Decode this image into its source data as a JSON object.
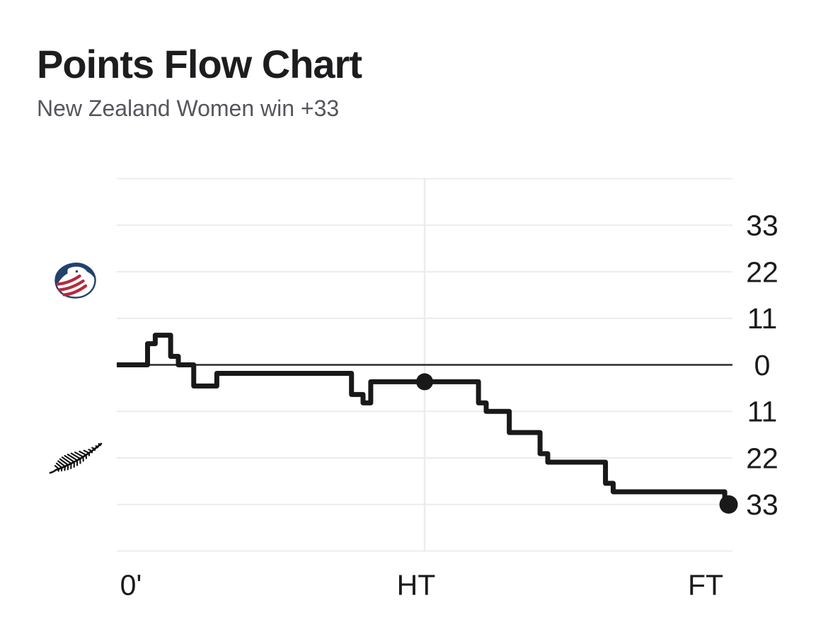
{
  "header": {
    "title": "Points Flow Chart",
    "subtitle": "New Zealand Women win +33"
  },
  "teams": {
    "top": {
      "name": "USA Women",
      "icon": "usa-rugby-eagle-logo"
    },
    "bottom": {
      "name": "New Zealand Women",
      "icon": "nz-silver-fern-logo"
    }
  },
  "chart_data": {
    "type": "line",
    "subtype": "step",
    "title": "Points Flow Chart",
    "subtitle": "New Zealand Women win +33",
    "grid": true,
    "legend": "none",
    "sign_convention": "positive margin = USA Women lead (top), negative margin = New Zealand Women lead (bottom)",
    "x_axis": {
      "unit": "match time (minutes)",
      "range": [
        0,
        80
      ],
      "tick_labels": [
        {
          "label": "0'",
          "t": 0
        },
        {
          "label": "HT",
          "t": 40
        },
        {
          "label": "FT",
          "t": 80
        }
      ]
    },
    "y_axis": {
      "unit": "points margin",
      "range": [
        -44,
        44
      ],
      "gridline_values": [
        44,
        33,
        22,
        11,
        0,
        -11,
        -22,
        -33,
        -44
      ],
      "tick_labels": [
        {
          "label": "33",
          "value": 33
        },
        {
          "label": "22",
          "value": 22
        },
        {
          "label": "11",
          "value": 11
        },
        {
          "label": "0",
          "value": 0
        },
        {
          "label": "11",
          "value": -11
        },
        {
          "label": "22",
          "value": -22
        },
        {
          "label": "33",
          "value": -33
        }
      ]
    },
    "steps": [
      {
        "t": 0,
        "diff": 0
      },
      {
        "t": 4,
        "diff": 5
      },
      {
        "t": 5,
        "diff": 7
      },
      {
        "t": 7,
        "diff": 2
      },
      {
        "t": 8,
        "diff": 0
      },
      {
        "t": 10,
        "diff": -5
      },
      {
        "t": 13,
        "diff": -2
      },
      {
        "t": 30.5,
        "diff": -7
      },
      {
        "t": 32,
        "diff": -9
      },
      {
        "t": 33,
        "diff": -4
      },
      {
        "t": 47,
        "diff": -9
      },
      {
        "t": 48,
        "diff": -11
      },
      {
        "t": 51,
        "diff": -16
      },
      {
        "t": 55,
        "diff": -21
      },
      {
        "t": 56,
        "diff": -23
      },
      {
        "t": 63.5,
        "diff": -28
      },
      {
        "t": 64.5,
        "diff": -30
      },
      {
        "t": 79,
        "diff": -33
      }
    ],
    "markers": {
      "halftime": {
        "t": 40,
        "diff": -4
      },
      "fulltime": {
        "t": 79.5,
        "diff": -33
      }
    },
    "final_margin": -33,
    "colors": {
      "line": "#191919",
      "zero_line": "#2b2b2b",
      "gridline": "#ececec",
      "label": "#1b1b1d",
      "title": "#1d1d1f",
      "subtitle": "#54565c",
      "usa_navy": "#24416e",
      "usa_red": "#b52a3c",
      "fern_black": "#101010"
    }
  }
}
